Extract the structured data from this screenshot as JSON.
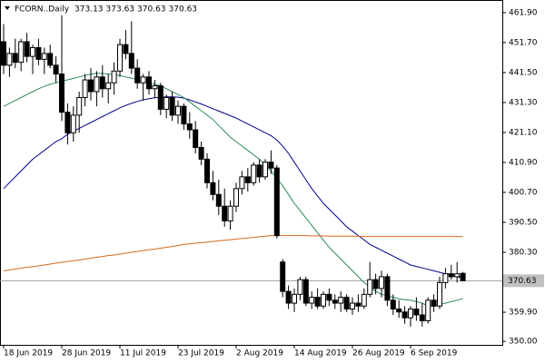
{
  "chart_data": {
    "type": "candlestick",
    "title": "FCORN..Daily",
    "categories": [
      "18 Jun 2019",
      null,
      null,
      null,
      null,
      null,
      null,
      null,
      null,
      null,
      "28 Jun 2019",
      null,
      null,
      null,
      null,
      null,
      null,
      null,
      null,
      null,
      "11 Jul 2019",
      null,
      null,
      null,
      null,
      null,
      null,
      null,
      null,
      null,
      "23 Jul 2019",
      null,
      null,
      null,
      null,
      null,
      null,
      null,
      null,
      null,
      "2 Aug 2019",
      null,
      null,
      null,
      null,
      null,
      null,
      null,
      null,
      null,
      "14 Aug 2019",
      null,
      null,
      null,
      null,
      null,
      null,
      null,
      null,
      null,
      "26 Aug 2019",
      null,
      null,
      null,
      null,
      null,
      null,
      null,
      null,
      null,
      "6 Sep 2019",
      null,
      null,
      null,
      null,
      null,
      null,
      null,
      null,
      null
    ],
    "open": [
      452,
      444,
      448,
      445,
      452,
      447,
      450,
      446,
      448,
      444,
      441,
      428,
      421,
      427,
      433,
      439,
      435,
      440,
      436,
      438,
      442,
      451,
      448,
      443,
      438,
      440,
      436,
      437,
      429,
      433,
      427,
      430,
      424,
      422,
      416,
      412,
      404,
      400,
      396,
      391,
      396,
      402,
      406,
      404,
      410,
      406,
      411,
      409,
      377,
      367,
      363,
      366,
      371,
      363,
      365,
      362,
      366,
      364,
      363,
      365,
      361,
      363,
      362,
      366,
      371,
      368,
      372,
      364,
      361,
      360,
      358,
      361,
      359,
      357,
      364,
      362,
      370,
      373,
      372,
      373.13
    ],
    "high": [
      458,
      450,
      453,
      453,
      455,
      451,
      453,
      450,
      451,
      447,
      461,
      431,
      430,
      435,
      441,
      443,
      442,
      444,
      441,
      445,
      453,
      456,
      459,
      446,
      441,
      442,
      439,
      438,
      434,
      435,
      432,
      431,
      428,
      425,
      418,
      414,
      408,
      405,
      402,
      398,
      404,
      408,
      409,
      411,
      412,
      412,
      415,
      410,
      378,
      369,
      368,
      372,
      372,
      367,
      368,
      367,
      368,
      366,
      367,
      366,
      365,
      366,
      368,
      377,
      373,
      374,
      373,
      366,
      364,
      362,
      362,
      365,
      363,
      365,
      366,
      372,
      375,
      376,
      377,
      373.63
    ],
    "low": [
      441,
      440,
      443,
      442,
      445,
      441,
      444,
      441,
      443,
      438,
      425,
      417,
      418,
      421,
      430,
      432,
      430,
      433,
      431,
      434,
      440,
      446,
      441,
      436,
      432,
      434,
      433,
      427,
      426,
      425,
      424,
      422,
      419,
      414,
      410,
      402,
      398,
      393,
      389,
      388,
      394,
      400,
      401,
      403,
      404,
      405,
      407,
      385,
      365,
      361,
      360,
      364,
      362,
      361,
      361,
      361,
      362,
      361,
      360,
      360,
      359,
      360,
      361,
      365,
      366,
      365,
      362,
      359,
      358,
      356,
      355,
      357,
      355,
      356,
      360,
      361,
      368,
      371,
      370,
      370.63
    ],
    "close": [
      444,
      448,
      445,
      452,
      447,
      450,
      446,
      448,
      444,
      441,
      428,
      421,
      427,
      433,
      439,
      435,
      440,
      436,
      438,
      442,
      451,
      448,
      443,
      438,
      440,
      436,
      437,
      429,
      433,
      427,
      430,
      424,
      422,
      416,
      412,
      404,
      400,
      396,
      391,
      396,
      402,
      406,
      404,
      410,
      406,
      411,
      409,
      386,
      367,
      363,
      366,
      371,
      363,
      365,
      362,
      366,
      364,
      363,
      365,
      361,
      363,
      362,
      366,
      371,
      368,
      372,
      364,
      361,
      360,
      358,
      361,
      359,
      357,
      364,
      362,
      370,
      373,
      372,
      373,
      370.63
    ],
    "overlays": [
      {
        "color": "#00008b",
        "values": [
          402,
          404,
          406,
          408,
          410,
          412,
          413.5,
          415,
          416.5,
          418,
          419,
          420.5,
          421.5,
          422.5,
          423.5,
          424.5,
          425.5,
          426.5,
          427.5,
          428.5,
          429.5,
          430.3,
          431,
          431.7,
          432.2,
          432.6,
          432.9,
          433.1,
          433.2,
          433.2,
          433.1,
          432.8,
          432.2,
          431.5,
          430.8,
          430,
          429.2,
          428.4,
          427.6,
          426.8,
          426,
          425,
          424,
          423,
          422,
          421,
          420,
          418.5,
          416.5,
          414,
          411,
          408,
          405,
          402,
          399.5,
          397,
          395,
          393,
          391,
          389,
          387.5,
          386,
          384.5,
          383,
          382,
          381,
          380,
          379,
          378,
          377,
          376,
          375.5,
          375,
          374.5,
          374,
          373.5,
          373,
          372.5,
          372,
          371.5
        ]
      },
      {
        "color": "#2e8b57",
        "values": [
          430,
          431,
          432,
          433,
          434,
          435,
          436,
          436.8,
          437.5,
          438,
          438.6,
          439,
          439.5,
          440,
          440.5,
          441,
          441.2,
          441.2,
          441,
          440.8,
          440.5,
          440,
          439.6,
          439,
          438.5,
          438,
          437.5,
          437,
          436,
          435,
          434,
          433,
          431.5,
          430,
          428.5,
          427,
          425.5,
          423.5,
          421.5,
          419.5,
          418,
          416.5,
          415,
          413.5,
          412,
          410,
          408,
          405.5,
          403,
          400,
          397,
          394.5,
          392,
          389.5,
          387,
          384.5,
          382,
          380,
          378,
          376,
          374,
          372,
          370,
          368.5,
          367,
          366,
          365.5,
          365,
          364.5,
          364.2,
          364,
          363.5,
          363,
          362,
          362,
          362.5,
          363,
          363.5,
          364,
          364.5
        ]
      },
      {
        "color": "#d2691e",
        "values": [
          374,
          374.3,
          374.6,
          374.9,
          375.2,
          375.4,
          375.7,
          376,
          376.3,
          376.6,
          376.9,
          377.2,
          377.4,
          377.7,
          378,
          378.3,
          378.6,
          378.9,
          379.2,
          379.4,
          379.7,
          380,
          380.3,
          380.6,
          380.9,
          381.2,
          381.4,
          381.7,
          382,
          382.3,
          382.6,
          383,
          383.2,
          383.4,
          383.6,
          383.8,
          384,
          384.2,
          384.4,
          384.6,
          384.8,
          385,
          385.2,
          385.4,
          385.6,
          385.8,
          386,
          386,
          386,
          386,
          386,
          386,
          386,
          385.9,
          385.9,
          385.9,
          385.8,
          385.8,
          385.8,
          385.8,
          385.8,
          385.8,
          385.7,
          385.7,
          385.7,
          385.7,
          385.7,
          385.7,
          385.7,
          385.7,
          385.7,
          385.7,
          385.7,
          385.7,
          385.7,
          385.7,
          385.7,
          385.7,
          385.7,
          385.7
        ]
      }
    ],
    "current_price": 370.63,
    "ylim": [
      348.8,
      466.2
    ],
    "yticks": [
      {
        "value": 461.9,
        "label": "461.90"
      },
      {
        "value": 451.7,
        "label": "451.70"
      },
      {
        "value": 441.5,
        "label": "441.50"
      },
      {
        "value": 431.3,
        "label": "431.30"
      },
      {
        "value": 421.1,
        "label": "421.10"
      },
      {
        "value": 410.9,
        "label": "410.90"
      },
      {
        "value": 400.7,
        "label": "400.70"
      },
      {
        "value": 390.5,
        "label": "390.50"
      },
      {
        "value": 380.3,
        "label": "380.30"
      },
      {
        "value": 359.9,
        "label": "359.90"
      },
      {
        "value": 350,
        "label": "350.00"
      }
    ],
    "grid": false,
    "up_color": "#ffffff",
    "down_color": "#000000"
  }
}
